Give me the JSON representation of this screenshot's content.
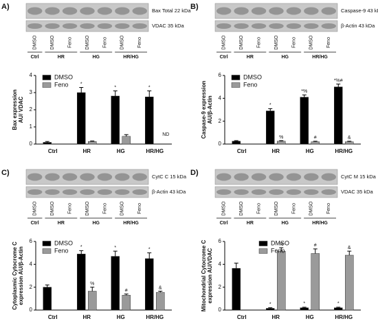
{
  "chart_data": [
    {
      "panel": "A)",
      "type": "bar",
      "blot": {
        "bands": [
          "Bax Total 22 kDa",
          "VDAC 35 kDa"
        ],
        "lanes": [
          "DMSO",
          "DMSO",
          "Feno",
          "DMSO",
          "Feno",
          "DMSO",
          "Feno"
        ],
        "groups": [
          "Ctrl",
          "HR",
          "HG",
          "HR/HG"
        ]
      },
      "ylabel": [
        "Bax expression",
        "AU/ VDAC"
      ],
      "categories": [
        "Ctrl",
        "HR",
        "HG",
        "HR/HG"
      ],
      "series": [
        {
          "name": "DMSO",
          "color": "#000000",
          "values": [
            0.1,
            3.0,
            2.8,
            2.75
          ],
          "errors": [
            0.05,
            0.3,
            0.3,
            0.35
          ],
          "annotations": [
            null,
            "*",
            "*",
            "*"
          ]
        },
        {
          "name": "Feno",
          "color": "#9a9a9a",
          "values": [
            null,
            0.15,
            0.45,
            null
          ],
          "errors": [
            null,
            0.03,
            0.1,
            null
          ],
          "annotations": [
            null,
            null,
            null,
            "ND"
          ]
        }
      ],
      "ylim": [
        0,
        4
      ],
      "yticks": [
        0,
        1,
        2,
        3,
        4
      ],
      "legend": "upper left"
    },
    {
      "panel": "B)",
      "type": "bar",
      "blot": {
        "bands": [
          "Caspase-9 43 kDa",
          "β-Actin 43 kDa"
        ],
        "lanes": [
          "DMSO",
          "DMSO",
          "Feno",
          "DMSO",
          "Feno",
          "DMSO",
          "Feno"
        ],
        "groups": [
          "Ctrl",
          "HR",
          "HG",
          "HR/HG"
        ]
      },
      "ylabel": [
        "Caspase-9 expression",
        "AU/β-Actin"
      ],
      "categories": [
        "Ctrl",
        "HR",
        "HG",
        "HR/HG"
      ],
      "series": [
        {
          "name": "DMSO",
          "color": "#000000",
          "values": [
            0.25,
            2.9,
            4.1,
            5.0
          ],
          "errors": [
            0.05,
            0.2,
            0.2,
            0.25
          ],
          "annotations": [
            null,
            "*",
            "*%",
            "*%#"
          ]
        },
        {
          "name": "Feno",
          "color": "#9a9a9a",
          "values": [
            null,
            0.25,
            0.2,
            0.2
          ],
          "errors": [
            null,
            0.05,
            0.05,
            0.05
          ],
          "annotations": [
            null,
            "%",
            "#",
            "&"
          ]
        }
      ],
      "ylim": [
        0,
        6
      ],
      "yticks": [
        0,
        2,
        4,
        6
      ],
      "legend": "upper left"
    },
    {
      "panel": "C)",
      "type": "bar",
      "blot": {
        "bands": [
          "CytC C 15 kDa",
          "β-Actin 43 kDa"
        ],
        "lanes": [
          "DMSO",
          "DMSO",
          "Feno",
          "DMSO",
          "Feno",
          "DMSO",
          "Feno"
        ],
        "groups": [
          "Ctrl",
          "HR",
          "HG",
          "HR/HG"
        ]
      },
      "ylabel": [
        "Cytoplasmic Cytocrome C",
        "expression AU/β-Actin"
      ],
      "categories": [
        "Ctrl",
        "HR",
        "HG",
        "HR/HG"
      ],
      "series": [
        {
          "name": "DMSO",
          "color": "#000000",
          "values": [
            2.0,
            4.9,
            4.7,
            4.5
          ],
          "errors": [
            0.2,
            0.3,
            0.45,
            0.5
          ],
          "annotations": [
            null,
            "*",
            "*",
            "*"
          ]
        },
        {
          "name": "Feno",
          "color": "#9a9a9a",
          "values": [
            null,
            1.65,
            1.3,
            1.55
          ],
          "errors": [
            null,
            0.35,
            0.1,
            0.1
          ],
          "annotations": [
            null,
            "%",
            "#",
            "&"
          ]
        }
      ],
      "ylim": [
        0,
        6
      ],
      "yticks": [
        0,
        2,
        4,
        6
      ],
      "legend": "upper left"
    },
    {
      "panel": "D)",
      "type": "bar",
      "blot": {
        "bands": [
          "CytC M 15 kDa",
          "VDAC 35 kDa"
        ],
        "lanes": [
          "DMSO",
          "DMSO",
          "Feno",
          "DMSO",
          "Feno",
          "DMSO",
          "Feno"
        ],
        "groups": [
          "Ctrl",
          "HR",
          "HG",
          "HR/HG"
        ]
      },
      "ylabel": [
        "Mitochondrial Cytocrome C",
        "expression AU/VDAC"
      ],
      "categories": [
        "Ctrl",
        "HR",
        "HG",
        "HR/HG"
      ],
      "series": [
        {
          "name": "DMSO",
          "color": "#000000",
          "values": [
            3.65,
            0.15,
            0.2,
            0.2
          ],
          "errors": [
            0.45,
            0.05,
            0.05,
            0.05
          ],
          "annotations": [
            null,
            "*",
            "*",
            "*"
          ]
        },
        {
          "name": "Feno",
          "color": "#9a9a9a",
          "values": [
            null,
            5.15,
            4.95,
            4.8
          ],
          "errors": [
            null,
            0.3,
            0.4,
            0.35
          ],
          "annotations": [
            null,
            "%",
            "#",
            "&"
          ]
        }
      ],
      "ylim": [
        0,
        6
      ],
      "yticks": [
        0,
        2,
        4,
        6
      ],
      "legend": "upper center"
    }
  ]
}
